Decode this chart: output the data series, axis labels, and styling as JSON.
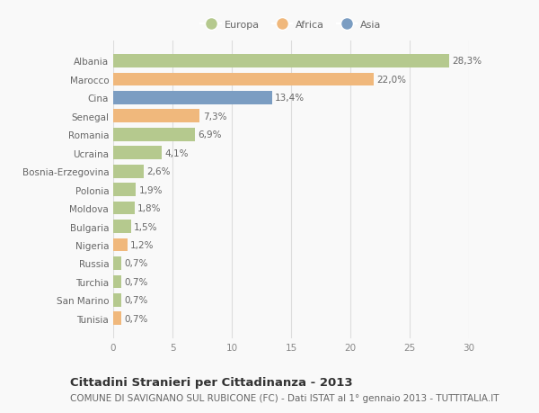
{
  "categories": [
    "Albania",
    "Marocco",
    "Cina",
    "Senegal",
    "Romania",
    "Ucraina",
    "Bosnia-Erzegovina",
    "Polonia",
    "Moldova",
    "Bulgaria",
    "Nigeria",
    "Russia",
    "Turchia",
    "San Marino",
    "Tunisia"
  ],
  "values": [
    28.3,
    22.0,
    13.4,
    7.3,
    6.9,
    4.1,
    2.6,
    1.9,
    1.8,
    1.5,
    1.2,
    0.7,
    0.7,
    0.7,
    0.7
  ],
  "labels": [
    "28,3%",
    "22,0%",
    "13,4%",
    "7,3%",
    "6,9%",
    "4,1%",
    "2,6%",
    "1,9%",
    "1,8%",
    "1,5%",
    "1,2%",
    "0,7%",
    "0,7%",
    "0,7%",
    "0,7%"
  ],
  "colors": [
    "#b5c98e",
    "#f0b87c",
    "#7b9dc2",
    "#f0b87c",
    "#b5c98e",
    "#b5c98e",
    "#b5c98e",
    "#b5c98e",
    "#b5c98e",
    "#b5c98e",
    "#f0b87c",
    "#b5c98e",
    "#b5c98e",
    "#b5c98e",
    "#f0b87c"
  ],
  "legend_labels": [
    "Europa",
    "Africa",
    "Asia"
  ],
  "legend_colors": [
    "#b5c98e",
    "#f0b87c",
    "#7b9dc2"
  ],
  "xlim": [
    0,
    30
  ],
  "xticks": [
    0,
    5,
    10,
    15,
    20,
    25,
    30
  ],
  "title": "Cittadini Stranieri per Cittadinanza - 2013",
  "subtitle": "COMUNE DI SAVIGNANO SUL RUBICONE (FC) - Dati ISTAT al 1° gennaio 2013 - TUTTITALIA.IT",
  "background_color": "#f9f9f9",
  "grid_color": "#dddddd",
  "bar_height": 0.72,
  "label_fontsize": 7.5,
  "tick_fontsize": 7.5,
  "title_fontsize": 9.5,
  "subtitle_fontsize": 7.5
}
